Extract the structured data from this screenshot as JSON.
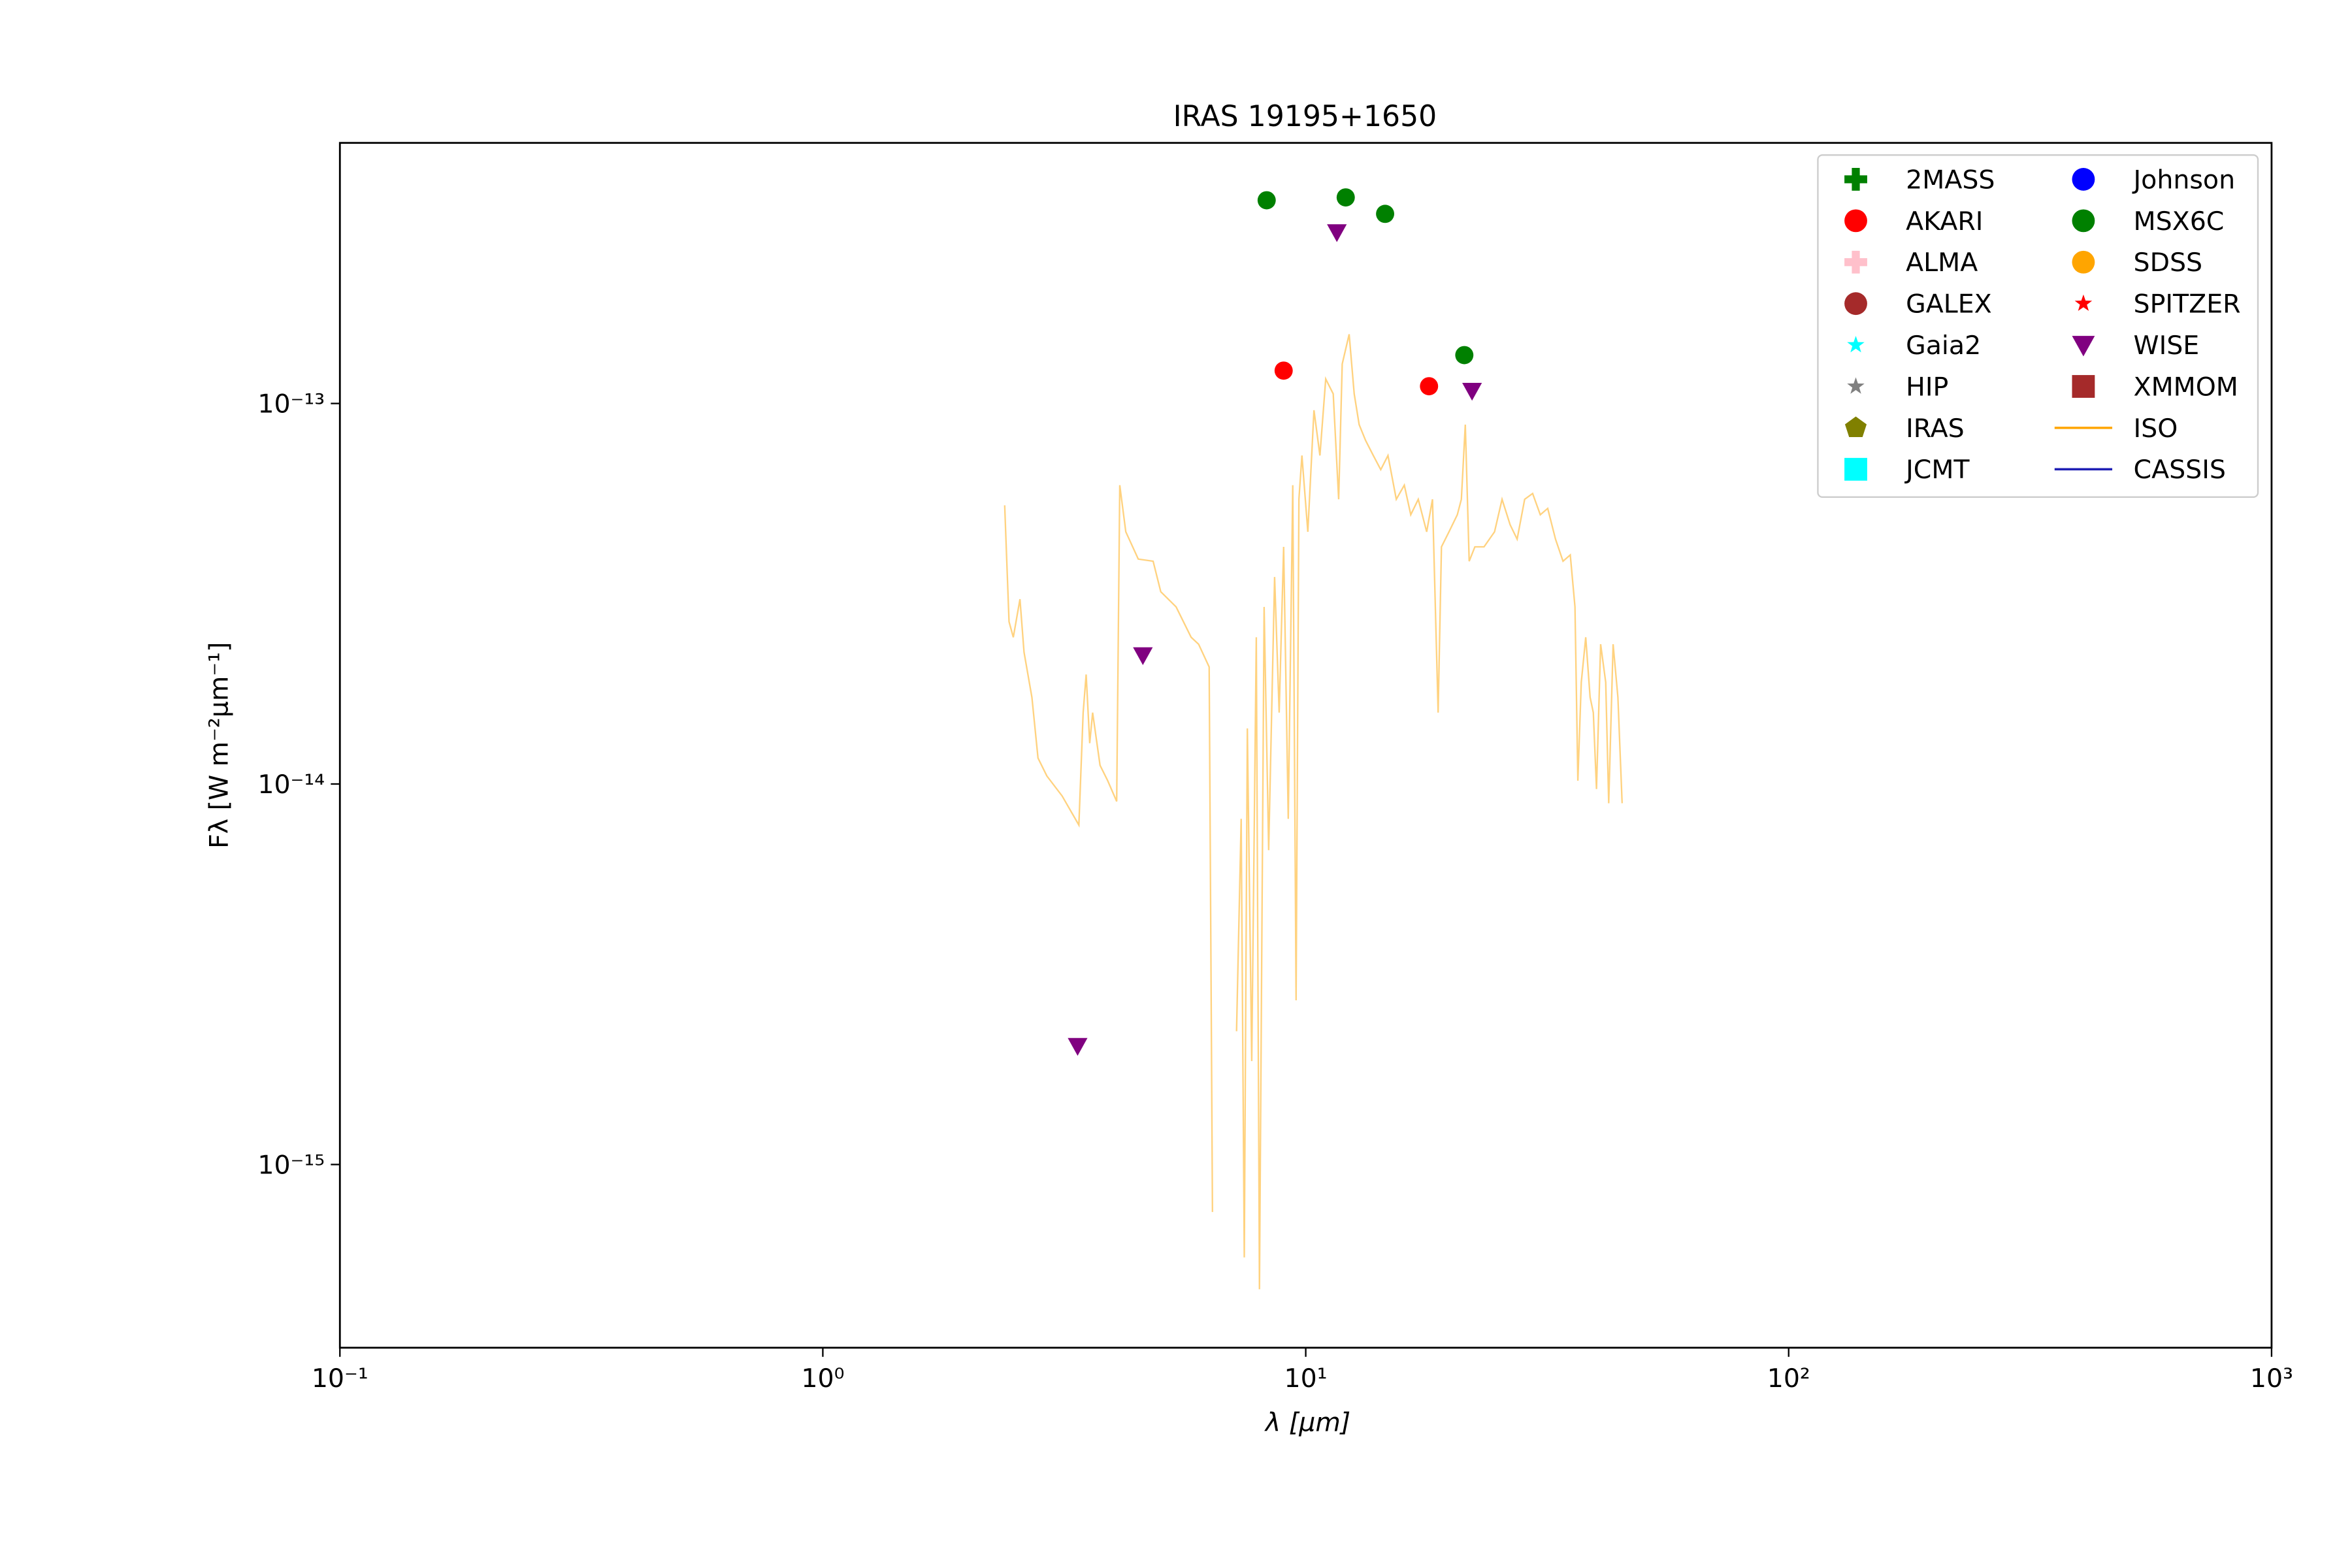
{
  "chart_data": {
    "type": "scatter",
    "title": "IRAS 19195+1650",
    "xlabel": "λ [μm]",
    "ylabel": "Fλ [W m⁻²μm⁻¹]",
    "xscale": "log",
    "yscale": "log",
    "xlim": [
      0.1,
      1000
    ],
    "ylim": [
      3.3e-16,
      4.84e-13
    ],
    "xticks": [
      {
        "value": 0.1,
        "label": "10⁻¹"
      },
      {
        "value": 1,
        "label": "10⁰"
      },
      {
        "value": 10,
        "label": "10¹"
      },
      {
        "value": 100,
        "label": "10²"
      },
      {
        "value": 1000,
        "label": "10³"
      }
    ],
    "yticks": [
      {
        "value": 1e-15,
        "label": "10⁻¹⁵"
      },
      {
        "value": 1e-14,
        "label": "10⁻¹⁴"
      },
      {
        "value": 1e-13,
        "label": "10⁻¹³"
      }
    ],
    "legend": "upper right",
    "series": [
      {
        "name": "2MASS",
        "color": "green",
        "marker": "plus",
        "x": [],
        "values": []
      },
      {
        "name": "AKARI",
        "color": "red",
        "marker": "circle",
        "x": [
          9.0,
          18.0
        ],
        "values": [
          1.22e-13,
          1.11e-13
        ]
      },
      {
        "name": "ALMA",
        "color": "pink",
        "marker": "plus",
        "x": [],
        "values": []
      },
      {
        "name": "GALEX",
        "color": "brown",
        "marker": "circle",
        "x": [],
        "values": []
      },
      {
        "name": "Gaia2",
        "color": "cyan",
        "marker": "star",
        "x": [],
        "values": []
      },
      {
        "name": "HIP",
        "color": "gray",
        "marker": "star",
        "x": [],
        "values": []
      },
      {
        "name": "IRAS",
        "color": "olive",
        "marker": "pentagon",
        "x": [],
        "values": []
      },
      {
        "name": "JCMT",
        "color": "cyan",
        "marker": "square",
        "x": [],
        "values": []
      },
      {
        "name": "Johnson",
        "color": "blue",
        "marker": "circle",
        "x": [],
        "values": []
      },
      {
        "name": "MSX6C",
        "color": "green",
        "marker": "circle",
        "x": [
          8.3,
          12.1,
          14.6,
          21.3
        ],
        "values": [
          3.42e-13,
          3.48e-13,
          3.15e-13,
          1.34e-13
        ]
      },
      {
        "name": "SDSS",
        "color": "orange",
        "marker": "circle",
        "x": [],
        "values": []
      },
      {
        "name": "SPITZER",
        "color": "red",
        "marker": "star",
        "x": [],
        "values": []
      },
      {
        "name": "WISE",
        "color": "purple",
        "marker": "triangle-down",
        "x": [
          3.37,
          4.6,
          11.6,
          22.1
        ],
        "values": [
          2.05e-15,
          2.18e-14,
          2.82e-13,
          1.08e-13
        ]
      },
      {
        "name": "XMMOM",
        "color": "brown",
        "marker": "square",
        "x": [],
        "values": []
      },
      {
        "name": "ISO",
        "color": "orange",
        "marker": "line",
        "alpha": 0.5,
        "x": [
          2.38,
          2.43,
          2.48,
          2.56,
          2.61,
          2.71,
          2.79,
          2.91,
          3.13,
          3.39,
          3.46,
          3.51,
          3.57,
          3.62,
          3.75,
          3.89,
          4.06,
          4.12,
          4.24,
          4.5,
          4.83,
          5.01,
          5.39,
          5.79,
          6.0,
          6.31,
          6.41,
          null,
          7.19,
          7.35,
          7.46,
          7.57,
          7.73,
          7.9,
          8.02,
          8.2,
          8.38,
          8.62,
          8.81,
          9.0,
          9.2,
          9.4,
          9.55,
          9.68,
          9.82,
          10.1,
          10.4,
          10.7,
          11.0,
          11.4,
          11.7,
          11.9,
          12.3,
          12.6,
          12.9,
          13.3,
          13.8,
          14.3,
          14.8,
          15.4,
          16.0,
          16.5,
          17.1,
          17.8,
          18.3,
          18.8,
          19.1,
          19.8,
          20.6,
          21.0,
          21.4,
          21.8,
          22.4,
          23.4,
          24.6,
          25.5,
          26.5,
          27.4,
          28.4,
          29.5,
          30.6,
          31.7,
          32.9,
          34.1,
          35.3,
          36.1,
          36.6,
          37.2,
          38.0,
          38.8,
          39.4,
          40.0,
          40.8,
          41.8,
          42.4,
          43.3,
          44.3,
          45.2
        ],
        "values": [
          5.4e-14,
          2.67e-14,
          2.43e-14,
          3.06e-14,
          2.22e-14,
          1.69e-14,
          1.17e-14,
          1.05e-14,
          9.3e-15,
          7.8e-15,
          1.54e-14,
          1.94e-14,
          1.28e-14,
          1.54e-14,
          1.12e-14,
          1.02e-14,
          9e-15,
          6.1e-14,
          4.6e-14,
          3.9e-14,
          3.85e-14,
          3.2e-14,
          2.92e-14,
          2.43e-14,
          2.33e-14,
          2.03e-14,
          7.5e-16,
          null,
          2.24e-15,
          8.1e-15,
          5.7e-16,
          1.4e-14,
          1.87e-15,
          2.43e-14,
          4.7e-16,
          2.92e-14,
          6.7e-15,
          3.5e-14,
          1.54e-14,
          4.2e-14,
          8.1e-15,
          6.1e-14,
          2.7e-15,
          5.6e-14,
          7.3e-14,
          4.6e-14,
          9.6e-14,
          7.3e-14,
          1.16e-13,
          1.06e-13,
          5.6e-14,
          1.27e-13,
          1.52e-13,
          1.06e-13,
          8.8e-14,
          8e-14,
          7.3e-14,
          6.7e-14,
          7.3e-14,
          5.6e-14,
          6.1e-14,
          5.1e-14,
          5.6e-14,
          4.6e-14,
          5.6e-14,
          1.54e-14,
          4.2e-14,
          4.6e-14,
          5.1e-14,
          5.6e-14,
          8.8e-14,
          3.85e-14,
          4.2e-14,
          4.2e-14,
          4.6e-14,
          5.6e-14,
          4.8e-14,
          4.4e-14,
          5.6e-14,
          5.8e-14,
          5.1e-14,
          5.3e-14,
          4.4e-14,
          3.85e-14,
          4e-14,
          2.92e-14,
          1.02e-14,
          1.85e-14,
          2.43e-14,
          1.69e-14,
          1.54e-14,
          9.7e-15,
          2.33e-14,
          1.85e-14,
          8.9e-15,
          2.33e-14,
          1.69e-14,
          8.9e-15
        ]
      },
      {
        "name": "CASSIS",
        "color": "#1f1fb4",
        "marker": "line",
        "x": [],
        "values": []
      }
    ]
  }
}
